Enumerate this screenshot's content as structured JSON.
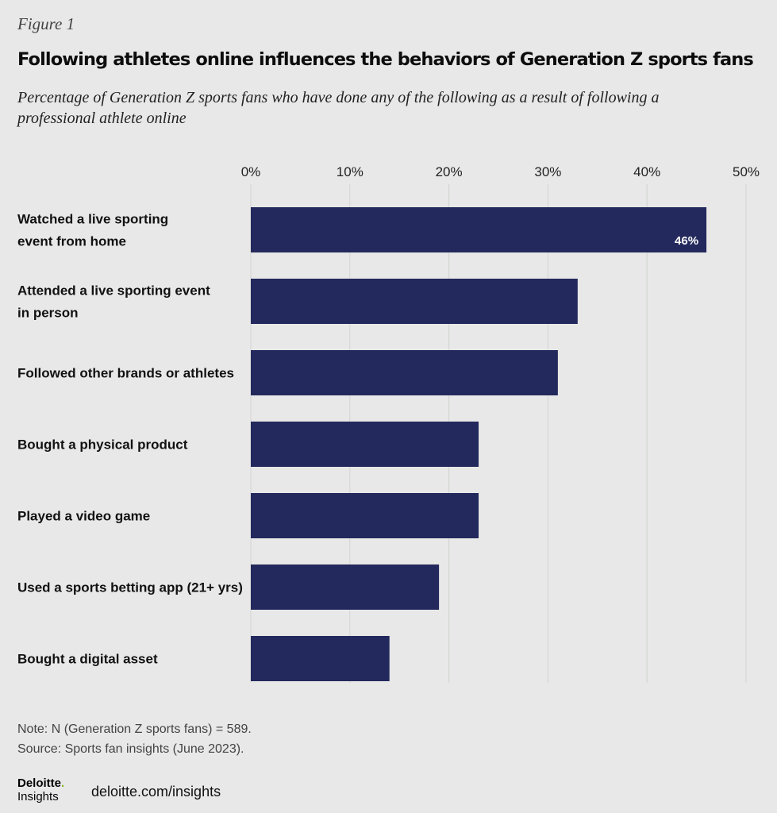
{
  "figure_label": "Figure 1",
  "title": "Following athletes online influences the behaviors of Generation Z sports fans",
  "subtitle": "Percentage of Generation Z sports fans who have done any of the following as a result of following a professional athlete online",
  "chart_data": {
    "type": "bar",
    "orientation": "horizontal",
    "categories": [
      [
        "Watched a live sporting",
        "event from home"
      ],
      [
        "Attended a live sporting event",
        "in person"
      ],
      [
        "Followed other brands or athletes"
      ],
      [
        "Bought a physical product"
      ],
      [
        "Played a video game"
      ],
      [
        "Used a sports betting app (21+ yrs)"
      ],
      [
        "Bought a digital asset"
      ]
    ],
    "values": [
      46,
      33,
      31,
      23,
      23,
      19,
      14
    ],
    "data_labels": [
      "46%",
      "",
      "",
      "",
      "",
      "",
      ""
    ],
    "xlim": [
      0,
      50
    ],
    "ticks": [
      0,
      10,
      20,
      30,
      40,
      50
    ],
    "tick_labels": [
      "0%",
      "10%",
      "20%",
      "30%",
      "40%",
      "50%"
    ],
    "axis_position": "top",
    "grid": true,
    "bar_color": "#23295c",
    "grid_color": "#d3d4d3"
  },
  "note": "Note: N (Generation Z sports fans) = 589.",
  "source": "Source: Sports fan insights (June 2023).",
  "logo": {
    "top": "Deloitte",
    "dot": ".",
    "bottom": "Insights"
  },
  "site": "deloitte.com/insights"
}
